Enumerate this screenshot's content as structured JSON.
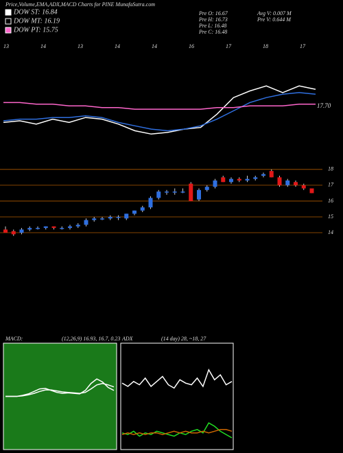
{
  "chart_data": {
    "type": "candlestick",
    "title": "Price,Volume,EMA,ADX,MACD Charts for PINE MunafaSutra.com",
    "legend": [
      {
        "label": "DOW ST: 16.84",
        "color": "#ffffff"
      },
      {
        "label": "DOW MT: 16.19",
        "color": "#000000"
      },
      {
        "label": "DOW PT: 15.75",
        "color": "#ff66cc"
      }
    ],
    "info": [
      "Pre  O: 16.67",
      "Pre  H: 16.73",
      "Pre  L: 16.48",
      "Pre  C: 16.48",
      "Avg V: 0.007 M",
      "Pre  V: 0.644 M"
    ],
    "date_labels": [
      "13",
      "14",
      "13",
      "14",
      "14",
      "16",
      "17",
      "18",
      "17"
    ],
    "ema_label": "17.70",
    "up_color": "#2f6fe0",
    "down_color": "#e01818",
    "open": [
      14.2,
      14.1,
      14.0,
      14.2,
      14.3,
      14.3,
      14.4,
      14.3,
      14.3,
      14.4,
      14.5,
      14.8,
      14.9,
      14.9,
      15.0,
      14.9,
      15.2,
      15.4,
      15.6,
      16.2,
      16.6,
      16.6,
      16.6,
      17.1,
      16.1,
      16.7,
      16.9,
      17.5,
      17.2,
      17.4,
      17.3,
      17.4,
      17.6,
      17.9,
      17.5,
      17.0,
      17.2,
      17.0,
      16.8
    ],
    "high": [
      14.4,
      14.2,
      14.3,
      14.4,
      14.4,
      14.4,
      14.4,
      14.4,
      14.5,
      14.6,
      14.9,
      15.0,
      15.0,
      15.1,
      15.1,
      15.2,
      15.4,
      15.7,
      16.3,
      16.7,
      16.7,
      16.8,
      16.8,
      17.2,
      16.8,
      17.0,
      17.4,
      17.6,
      17.5,
      17.5,
      17.6,
      17.6,
      17.8,
      18.0,
      17.6,
      17.4,
      17.3,
      17.1,
      16.8
    ],
    "low": [
      14.0,
      13.8,
      13.9,
      14.1,
      14.2,
      14.2,
      14.2,
      14.2,
      14.2,
      14.3,
      14.4,
      14.7,
      14.8,
      14.8,
      14.8,
      14.8,
      15.1,
      15.3,
      15.5,
      16.1,
      16.4,
      16.4,
      16.5,
      16.0,
      16.0,
      16.6,
      16.8,
      17.2,
      17.1,
      17.2,
      17.2,
      17.3,
      17.5,
      17.5,
      16.9,
      16.9,
      16.9,
      16.7,
      16.5
    ],
    "close": [
      14.0,
      13.9,
      14.2,
      14.3,
      14.3,
      14.4,
      14.3,
      14.3,
      14.4,
      14.5,
      14.8,
      14.9,
      14.9,
      15.0,
      15.0,
      15.2,
      15.4,
      15.6,
      16.2,
      16.6,
      16.6,
      16.6,
      16.6,
      16.0,
      16.7,
      16.9,
      17.3,
      17.2,
      17.4,
      17.3,
      17.4,
      17.5,
      17.7,
      17.5,
      17.0,
      17.3,
      17.0,
      16.8,
      16.5
    ],
    "ylim": [
      12.7,
      18.6
    ],
    "yticks": [
      14,
      15,
      16,
      17,
      18
    ],
    "ema_ylim": [
      13,
      19
    ],
    "ema_series": [
      {
        "color": "#ffffff",
        "values": [
          14.1,
          14.2,
          14.0,
          14.3,
          14.1,
          14.4,
          14.3,
          14.0,
          13.6,
          13.4,
          13.5,
          13.7,
          13.8,
          14.6,
          15.6,
          16.0,
          16.3,
          15.9,
          16.3,
          16.1
        ]
      },
      {
        "color": "#2f6fe0",
        "values": [
          14.2,
          14.3,
          14.3,
          14.4,
          14.4,
          14.5,
          14.4,
          14.1,
          13.9,
          13.7,
          13.6,
          13.7,
          13.9,
          14.3,
          14.8,
          15.3,
          15.6,
          15.8,
          15.9,
          15.8
        ]
      },
      {
        "color": "#ff66cc",
        "values": [
          15.3,
          15.3,
          15.2,
          15.2,
          15.1,
          15.1,
          15.0,
          15.0,
          14.9,
          14.9,
          14.9,
          14.9,
          14.9,
          15.0,
          15.0,
          15.1,
          15.1,
          15.1,
          15.2,
          15.2
        ]
      }
    ],
    "macd_label": "MACD:",
    "macd_params": "(12,26,9) 16.93, 16.7, 0.23",
    "macd_ylim": [
      -10,
      10
    ],
    "macd_series": [
      {
        "color": "#ffffff",
        "values": [
          0,
          0,
          0,
          0.2,
          0.5,
          1,
          1.5,
          1.6,
          1.2,
          0.8,
          0.6,
          0.7,
          0.6,
          0.5,
          1.2,
          2.6,
          3.5,
          2.9,
          1.8,
          1.2
        ]
      },
      {
        "color": "#ffffff",
        "values": [
          0,
          0,
          0,
          0.1,
          0.3,
          0.6,
          1.0,
          1.3,
          1.3,
          1.1,
          0.9,
          0.8,
          0.7,
          0.6,
          0.8,
          1.5,
          2.3,
          2.6,
          2.3,
          1.9
        ]
      }
    ],
    "adx_label": "ADX",
    "adx_params": "(14  day) 28, ~18, 27",
    "adx_ylim": [
      0,
      60
    ],
    "adx_series": [
      {
        "color": "#ffffff",
        "values": [
          38,
          36,
          39,
          37,
          41,
          36,
          39,
          42,
          37,
          35,
          40,
          38,
          37,
          41,
          36,
          46,
          40,
          43,
          37,
          39
        ]
      },
      {
        "color": "#22dd22",
        "values": [
          8,
          7,
          9,
          6,
          8,
          7,
          9,
          8,
          7,
          6,
          8,
          7,
          9,
          10,
          8,
          14,
          12,
          9,
          7,
          5
        ]
      },
      {
        "color": "#cc6600",
        "values": [
          7,
          8,
          7,
          8,
          7,
          8,
          8,
          7,
          8,
          9,
          8,
          9,
          8,
          8,
          9,
          8,
          9,
          10,
          10,
          9
        ]
      }
    ]
  }
}
